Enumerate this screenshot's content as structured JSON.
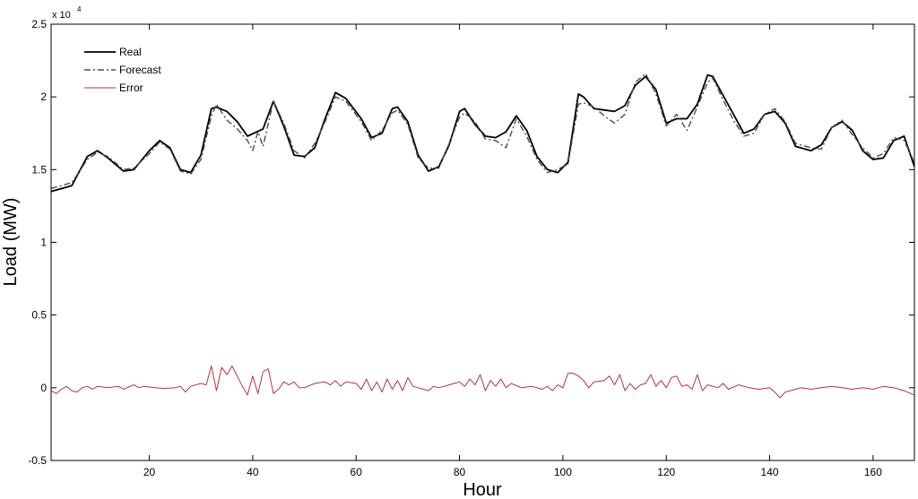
{
  "chart_data": {
    "type": "line",
    "title": "",
    "xlabel": "Hour",
    "ylabel": "Load (MW)",
    "y_multiplier": "x 10^4",
    "xlim": [
      1,
      168
    ],
    "ylim": [
      -5000,
      25000
    ],
    "x_ticks": [
      20,
      40,
      60,
      80,
      100,
      120,
      140,
      160
    ],
    "y_ticks": [
      -5000,
      0,
      5000,
      10000,
      15000,
      20000,
      25000
    ],
    "y_tick_labels": [
      "-0.5",
      "0",
      "0.5",
      "1",
      "1.5",
      "2",
      "2.5"
    ],
    "x_tick_labels": [
      "20",
      "40",
      "60",
      "80",
      "100",
      "120",
      "140",
      "160"
    ],
    "multiplier_text": "x 10",
    "multiplier_exp": "4",
    "grid": false,
    "legend_position": "top-left",
    "series": [
      {
        "name": "Real",
        "color": "#000000",
        "style": "solid",
        "points": [
          [
            1,
            13500
          ],
          [
            5,
            13900
          ],
          [
            8,
            15900
          ],
          [
            10,
            16300
          ],
          [
            12,
            15800
          ],
          [
            15,
            14900
          ],
          [
            17,
            15000
          ],
          [
            20,
            16300
          ],
          [
            22,
            17000
          ],
          [
            24,
            16500
          ],
          [
            26,
            15000
          ],
          [
            28,
            14800
          ],
          [
            30,
            16000
          ],
          [
            32,
            19200
          ],
          [
            33,
            19300
          ],
          [
            35,
            19000
          ],
          [
            37,
            18300
          ],
          [
            39,
            17300
          ],
          [
            42,
            17800
          ],
          [
            44,
            19700
          ],
          [
            46,
            18000
          ],
          [
            48,
            16000
          ],
          [
            50,
            15900
          ],
          [
            52,
            16500
          ],
          [
            54,
            18500
          ],
          [
            56,
            20300
          ],
          [
            58,
            19900
          ],
          [
            61,
            18500
          ],
          [
            63,
            17200
          ],
          [
            65,
            17500
          ],
          [
            67,
            19200
          ],
          [
            68,
            19300
          ],
          [
            70,
            18300
          ],
          [
            72,
            16000
          ],
          [
            74,
            14900
          ],
          [
            76,
            15200
          ],
          [
            78,
            16700
          ],
          [
            80,
            19000
          ],
          [
            81,
            19200
          ],
          [
            83,
            18100
          ],
          [
            85,
            17300
          ],
          [
            87,
            17200
          ],
          [
            89,
            17600
          ],
          [
            91,
            18700
          ],
          [
            93,
            17700
          ],
          [
            95,
            15900
          ],
          [
            97,
            15000
          ],
          [
            99,
            14800
          ],
          [
            101,
            15500
          ],
          [
            103,
            20200
          ],
          [
            104,
            20000
          ],
          [
            106,
            19200
          ],
          [
            108,
            19100
          ],
          [
            110,
            19000
          ],
          [
            112,
            19400
          ],
          [
            114,
            20800
          ],
          [
            116,
            21400
          ],
          [
            118,
            20500
          ],
          [
            120,
            18200
          ],
          [
            122,
            18500
          ],
          [
            124,
            18500
          ],
          [
            126,
            19500
          ],
          [
            128,
            21500
          ],
          [
            129,
            21400
          ],
          [
            131,
            20100
          ],
          [
            133,
            18800
          ],
          [
            135,
            17500
          ],
          [
            137,
            17800
          ],
          [
            139,
            18800
          ],
          [
            141,
            19000
          ],
          [
            143,
            18200
          ],
          [
            145,
            16600
          ],
          [
            148,
            16300
          ],
          [
            150,
            16700
          ],
          [
            152,
            17900
          ],
          [
            154,
            18300
          ],
          [
            156,
            17700
          ],
          [
            158,
            16300
          ],
          [
            160,
            15700
          ],
          [
            162,
            15800
          ],
          [
            164,
            17000
          ],
          [
            166,
            17300
          ],
          [
            168,
            15200
          ]
        ]
      },
      {
        "name": "Forecast",
        "color": "#4d4d4d",
        "style": "dash-dot",
        "points": [
          [
            1,
            13700
          ],
          [
            5,
            14100
          ],
          [
            8,
            15700
          ],
          [
            10,
            16200
          ],
          [
            12,
            15900
          ],
          [
            15,
            15000
          ],
          [
            17,
            15100
          ],
          [
            20,
            16100
          ],
          [
            22,
            16900
          ],
          [
            24,
            16400
          ],
          [
            26,
            14900
          ],
          [
            28,
            14700
          ],
          [
            30,
            15700
          ],
          [
            32,
            18700
          ],
          [
            33,
            19500
          ],
          [
            35,
            18400
          ],
          [
            37,
            17800
          ],
          [
            39,
            17000
          ],
          [
            40,
            16300
          ],
          [
            41,
            17600
          ],
          [
            42,
            16600
          ],
          [
            44,
            19700
          ],
          [
            46,
            18200
          ],
          [
            48,
            16300
          ],
          [
            50,
            15800
          ],
          [
            52,
            16800
          ],
          [
            54,
            18300
          ],
          [
            56,
            20000
          ],
          [
            58,
            19700
          ],
          [
            61,
            18300
          ],
          [
            63,
            17000
          ],
          [
            65,
            17700
          ],
          [
            67,
            18900
          ],
          [
            68,
            19100
          ],
          [
            70,
            18100
          ],
          [
            72,
            15800
          ],
          [
            74,
            15100
          ],
          [
            76,
            15100
          ],
          [
            78,
            16800
          ],
          [
            80,
            18600
          ],
          [
            81,
            18900
          ],
          [
            83,
            18300
          ],
          [
            85,
            17100
          ],
          [
            87,
            17000
          ],
          [
            89,
            16500
          ],
          [
            91,
            18500
          ],
          [
            93,
            17300
          ],
          [
            95,
            15700
          ],
          [
            97,
            14800
          ],
          [
            99,
            15000
          ],
          [
            101,
            15400
          ],
          [
            103,
            19500
          ],
          [
            104,
            19600
          ],
          [
            106,
            19300
          ],
          [
            108,
            18700
          ],
          [
            110,
            18200
          ],
          [
            112,
            18800
          ],
          [
            114,
            21000
          ],
          [
            116,
            21600
          ],
          [
            118,
            20200
          ],
          [
            120,
            18000
          ],
          [
            122,
            18800
          ],
          [
            124,
            17700
          ],
          [
            126,
            19300
          ],
          [
            128,
            21000
          ],
          [
            129,
            21300
          ],
          [
            131,
            19800
          ],
          [
            133,
            18400
          ],
          [
            135,
            17300
          ],
          [
            137,
            17500
          ],
          [
            139,
            18800
          ],
          [
            141,
            19200
          ],
          [
            143,
            18300
          ],
          [
            145,
            16800
          ],
          [
            148,
            16500
          ],
          [
            150,
            16400
          ],
          [
            152,
            17900
          ],
          [
            154,
            18400
          ],
          [
            156,
            17400
          ],
          [
            158,
            16500
          ],
          [
            160,
            15800
          ],
          [
            162,
            16100
          ],
          [
            164,
            17200
          ],
          [
            166,
            17000
          ],
          [
            168,
            15500
          ]
        ]
      },
      {
        "name": "Error",
        "color": "#b5333d",
        "style": "solid",
        "points": [
          [
            1,
            -200
          ],
          [
            2,
            -400
          ],
          [
            3,
            -100
          ],
          [
            4,
            100
          ],
          [
            5,
            -200
          ],
          [
            6,
            -300
          ],
          [
            7,
            0
          ],
          [
            8,
            100
          ],
          [
            9,
            -100
          ],
          [
            10,
            100
          ],
          [
            12,
            0
          ],
          [
            14,
            100
          ],
          [
            15,
            -100
          ],
          [
            17,
            200
          ],
          [
            18,
            0
          ],
          [
            19,
            100
          ],
          [
            21,
            0
          ],
          [
            23,
            -50
          ],
          [
            25,
            0
          ],
          [
            26,
            100
          ],
          [
            27,
            -300
          ],
          [
            28,
            100
          ],
          [
            30,
            300
          ],
          [
            31,
            200
          ],
          [
            32,
            1500
          ],
          [
            33,
            -200
          ],
          [
            34,
            1400
          ],
          [
            35,
            900
          ],
          [
            36,
            1500
          ],
          [
            37,
            800
          ],
          [
            38,
            100
          ],
          [
            39,
            -500
          ],
          [
            40,
            800
          ],
          [
            41,
            -400
          ],
          [
            42,
            1100
          ],
          [
            43,
            1300
          ],
          [
            44,
            -400
          ],
          [
            45,
            -100
          ],
          [
            46,
            400
          ],
          [
            47,
            200
          ],
          [
            48,
            400
          ],
          [
            49,
            0
          ],
          [
            50,
            0
          ],
          [
            52,
            300
          ],
          [
            54,
            400
          ],
          [
            55,
            200
          ],
          [
            56,
            500
          ],
          [
            57,
            100
          ],
          [
            58,
            400
          ],
          [
            60,
            300
          ],
          [
            61,
            -100
          ],
          [
            62,
            600
          ],
          [
            63,
            -200
          ],
          [
            64,
            400
          ],
          [
            65,
            -300
          ],
          [
            66,
            600
          ],
          [
            67,
            -100
          ],
          [
            68,
            500
          ],
          [
            69,
            -200
          ],
          [
            70,
            700
          ],
          [
            71,
            100
          ],
          [
            72,
            0
          ],
          [
            74,
            -200
          ],
          [
            75,
            100
          ],
          [
            76,
            0
          ],
          [
            78,
            200
          ],
          [
            80,
            400
          ],
          [
            81,
            100
          ],
          [
            82,
            600
          ],
          [
            83,
            200
          ],
          [
            84,
            900
          ],
          [
            85,
            -200
          ],
          [
            86,
            500
          ],
          [
            87,
            100
          ],
          [
            88,
            600
          ],
          [
            89,
            0
          ],
          [
            90,
            300
          ],
          [
            92,
            0
          ],
          [
            94,
            100
          ],
          [
            96,
            -100
          ],
          [
            97,
            100
          ],
          [
            98,
            -200
          ],
          [
            99,
            200
          ],
          [
            100,
            0
          ],
          [
            101,
            1000
          ],
          [
            102,
            1000
          ],
          [
            103,
            800
          ],
          [
            104,
            500
          ],
          [
            105,
            0
          ],
          [
            106,
            400
          ],
          [
            108,
            500
          ],
          [
            109,
            800
          ],
          [
            110,
            200
          ],
          [
            111,
            900
          ],
          [
            112,
            -200
          ],
          [
            113,
            300
          ],
          [
            114,
            -100
          ],
          [
            115,
            200
          ],
          [
            116,
            300
          ],
          [
            117,
            900
          ],
          [
            118,
            100
          ],
          [
            119,
            500
          ],
          [
            120,
            0
          ],
          [
            121,
            700
          ],
          [
            122,
            800
          ],
          [
            123,
            100
          ],
          [
            124,
            200
          ],
          [
            125,
            -100
          ],
          [
            126,
            900
          ],
          [
            127,
            -200
          ],
          [
            128,
            200
          ],
          [
            130,
            0
          ],
          [
            131,
            300
          ],
          [
            132,
            -100
          ],
          [
            134,
            200
          ],
          [
            136,
            0
          ],
          [
            138,
            -100
          ],
          [
            140,
            0
          ],
          [
            141,
            -300
          ],
          [
            142,
            -700
          ],
          [
            143,
            -300
          ],
          [
            144,
            -200
          ],
          [
            146,
            0
          ],
          [
            148,
            -100
          ],
          [
            150,
            0
          ],
          [
            152,
            100
          ],
          [
            154,
            0
          ],
          [
            156,
            -100
          ],
          [
            158,
            0
          ],
          [
            160,
            -100
          ],
          [
            162,
            100
          ],
          [
            164,
            0
          ],
          [
            166,
            -200
          ],
          [
            168,
            -500
          ]
        ]
      }
    ]
  }
}
